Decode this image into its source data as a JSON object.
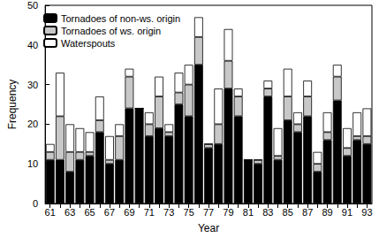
{
  "chart_data": {
    "type": "bar",
    "stacked": true,
    "x_label": "Year",
    "y_label": "Frequency",
    "categories": [
      "61",
      null,
      "63",
      null,
      "65",
      null,
      "67",
      null,
      "69",
      null,
      "71",
      null,
      "73",
      null,
      "75",
      null,
      "77",
      null,
      "79",
      null,
      "81",
      null,
      "83",
      null,
      "85",
      null,
      "87",
      null,
      "89",
      null,
      "91",
      null,
      "93"
    ],
    "series": [
      {
        "name": "Tornadoes of non-ws. origin",
        "color": "#000000",
        "values": [
          11,
          11,
          8,
          11,
          12,
          18,
          10,
          11,
          24,
          24,
          17,
          19,
          17,
          25,
          22,
          35,
          14,
          15,
          29,
          22,
          11,
          10,
          27,
          11,
          21,
          18,
          22,
          8,
          16,
          26,
          12,
          16,
          15
        ]
      },
      {
        "name": "Tornadoes of ws. origin",
        "color": "#c8c8c8",
        "values": [
          2,
          11,
          5,
          2,
          1,
          3,
          1,
          6,
          8,
          0,
          3,
          8,
          1,
          3,
          8,
          7,
          1,
          5,
          7,
          5,
          0,
          1,
          2,
          1,
          6,
          2,
          5,
          2,
          2,
          6,
          2,
          1,
          2
        ]
      },
      {
        "name": "Waterspouts",
        "color": "#ffffff",
        "values": [
          2,
          11,
          7,
          6,
          5,
          6,
          6,
          3,
          2,
          0,
          3,
          5,
          2,
          5,
          5,
          5,
          0,
          9,
          8,
          2,
          0,
          0,
          2,
          7,
          7,
          3,
          4,
          3,
          5,
          3,
          5,
          6,
          7
        ]
      }
    ],
    "ylim": [
      0,
      50
    ],
    "yticks": [
      0,
      10,
      20,
      30,
      40,
      50
    ],
    "legend": "upper left",
    "grid": false
  }
}
